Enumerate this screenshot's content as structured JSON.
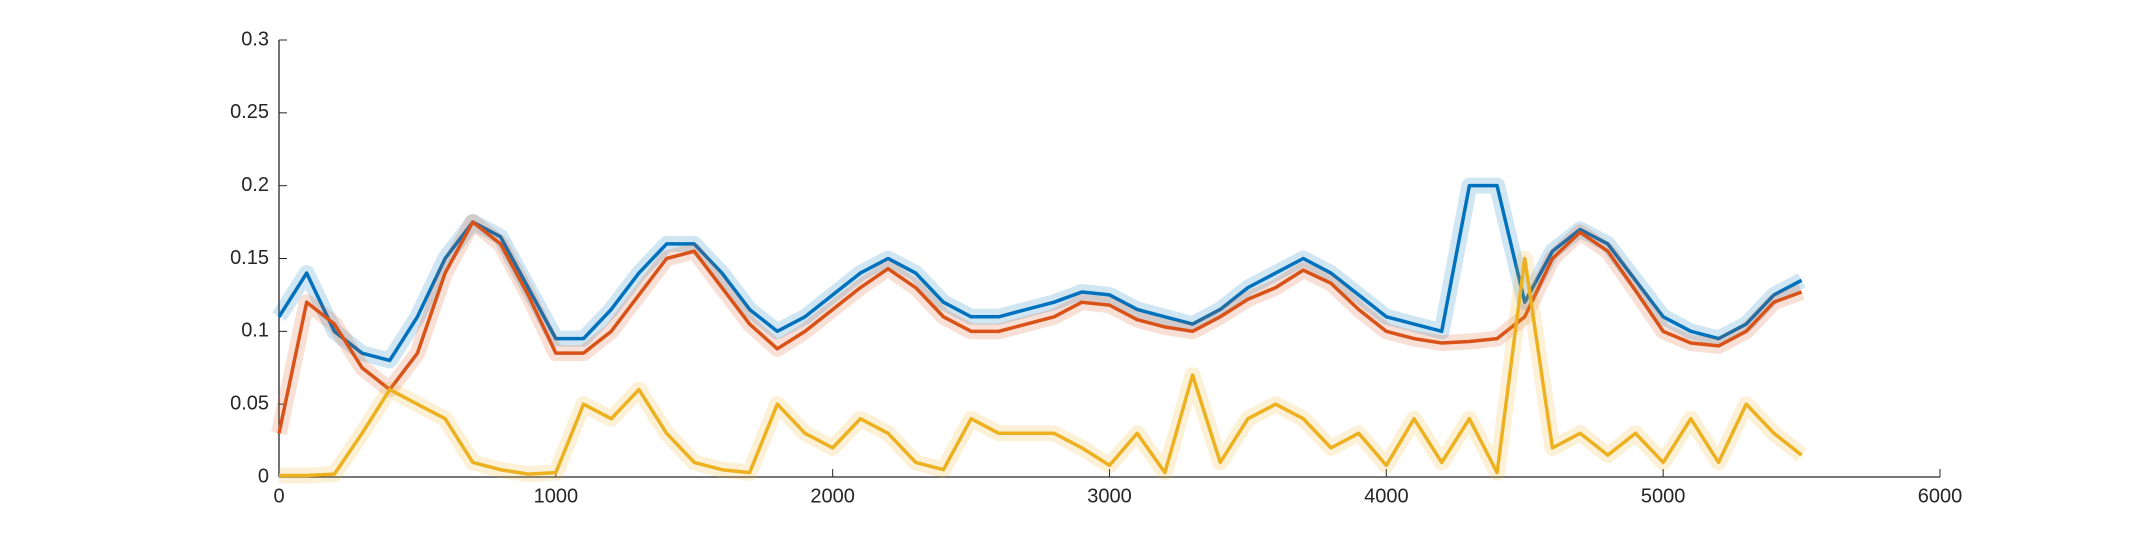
{
  "chart_data": {
    "type": "line",
    "x": [
      0,
      100,
      200,
      300,
      400,
      500,
      600,
      700,
      800,
      900,
      1000,
      1100,
      1200,
      1300,
      1400,
      1500,
      1600,
      1700,
      1800,
      1900,
      2000,
      2100,
      2200,
      2300,
      2400,
      2500,
      2600,
      2700,
      2800,
      2900,
      3000,
      3100,
      3200,
      3300,
      3400,
      3500,
      3600,
      3700,
      3800,
      3900,
      4000,
      4100,
      4200,
      4300,
      4400,
      4500,
      4600,
      4700,
      4800,
      4900,
      5000,
      5100,
      5200,
      5300,
      5400,
      5500
    ],
    "series": [
      {
        "color": "#0072bd",
        "values": [
          0.11,
          0.14,
          0.1,
          0.085,
          0.08,
          0.11,
          0.15,
          0.175,
          0.165,
          0.13,
          0.095,
          0.095,
          0.115,
          0.14,
          0.16,
          0.16,
          0.14,
          0.115,
          0.1,
          0.11,
          0.125,
          0.14,
          0.15,
          0.14,
          0.12,
          0.11,
          0.11,
          0.115,
          0.12,
          0.127,
          0.125,
          0.115,
          0.11,
          0.105,
          0.115,
          0.13,
          0.14,
          0.15,
          0.14,
          0.125,
          0.11,
          0.105,
          0.1,
          0.2,
          0.2,
          0.12,
          0.155,
          0.17,
          0.16,
          0.135,
          0.11,
          0.1,
          0.095,
          0.105,
          0.125,
          0.135
        ]
      },
      {
        "color": "#d95319",
        "values": [
          0.03,
          0.12,
          0.105,
          0.075,
          0.06,
          0.085,
          0.14,
          0.175,
          0.16,
          0.125,
          0.085,
          0.085,
          0.1,
          0.125,
          0.15,
          0.155,
          0.13,
          0.105,
          0.088,
          0.1,
          0.115,
          0.13,
          0.143,
          0.13,
          0.11,
          0.1,
          0.1,
          0.105,
          0.11,
          0.12,
          0.118,
          0.108,
          0.103,
          0.1,
          0.11,
          0.122,
          0.13,
          0.142,
          0.133,
          0.115,
          0.1,
          0.095,
          0.092,
          0.093,
          0.095,
          0.11,
          0.15,
          0.168,
          0.155,
          0.128,
          0.1,
          0.092,
          0.09,
          0.1,
          0.12,
          0.127
        ]
      },
      {
        "color": "#edb120",
        "values": [
          0.001,
          0.001,
          0.002,
          0.03,
          0.06,
          0.05,
          0.04,
          0.01,
          0.005,
          0.002,
          0.003,
          0.05,
          0.04,
          0.06,
          0.03,
          0.01,
          0.005,
          0.003,
          0.05,
          0.03,
          0.02,
          0.04,
          0.03,
          0.01,
          0.005,
          0.04,
          0.03,
          0.03,
          0.03,
          0.02,
          0.008,
          0.03,
          0.003,
          0.07,
          0.01,
          0.04,
          0.05,
          0.04,
          0.02,
          0.03,
          0.008,
          0.04,
          0.01,
          0.04,
          0.003,
          0.15,
          0.02,
          0.03,
          0.015,
          0.03,
          0.01,
          0.04,
          0.01,
          0.05,
          0.03,
          0.015
        ]
      }
    ],
    "xlim": [
      0,
      6000
    ],
    "xticks": [
      0,
      1000,
      2000,
      3000,
      4000,
      5000,
      6000
    ],
    "ylim": [
      0,
      0.3
    ],
    "yticks": [
      0,
      0.05,
      0.1,
      0.15,
      0.2,
      0.25,
      0.3
    ]
  }
}
